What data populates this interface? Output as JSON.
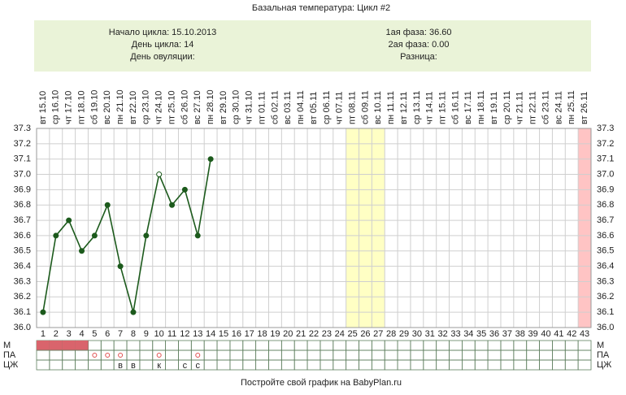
{
  "chart_data": {
    "type": "line",
    "title": "Базальная температура: Цикл #2",
    "info_left": [
      "Начало цикла: 15.10.2013",
      "День цикла: 14",
      "День овуляции:"
    ],
    "info_right": [
      "1ая фаза: 36.60",
      "2ая фаза: 0.00",
      "Разница:"
    ],
    "x": [
      1,
      2,
      3,
      4,
      5,
      6,
      7,
      8,
      9,
      10,
      11,
      12,
      13,
      14,
      15,
      16,
      17,
      18,
      19,
      20,
      21,
      22,
      23,
      24,
      25,
      26,
      27,
      28,
      29,
      30,
      31,
      32,
      33,
      34,
      35,
      36,
      37,
      38,
      39,
      40,
      41,
      42,
      43
    ],
    "x_dates": [
      "вт 15.10",
      "ср 16.10",
      "чт 17.10",
      "пт 18.10",
      "сб 19.10",
      "вс 20.10",
      "пн 21.10",
      "вт 22.10",
      "ср 23.10",
      "чт 24.10",
      "пт 25.10",
      "сб 26.10",
      "вс 27.10",
      "пн 28.10",
      "вт 29.10",
      "ср 30.10",
      "чт 31.10",
      "пт 01.11",
      "сб 02.11",
      "вс 03.11",
      "пн 04.11",
      "вт 05.11",
      "ср 06.11",
      "чт 07.11",
      "пт 08.11",
      "сб 09.11",
      "вс 10.11",
      "пн 11.11",
      "вт 12.11",
      "ср 13.11",
      "чт 14.11",
      "пт 15.11",
      "сб 16.11",
      "вс 17.11",
      "пн 18.11",
      "вт 19.11",
      "ср 20.11",
      "чт 21.11",
      "пт 22.11",
      "сб 23.11",
      "вс 24.11",
      "пн 25.11",
      "вт 26.11"
    ],
    "values": [
      36.1,
      36.6,
      36.7,
      36.5,
      36.6,
      36.8,
      36.4,
      36.1,
      36.6,
      37.0,
      36.8,
      36.9,
      36.6,
      37.1,
      null,
      null,
      null,
      null,
      null,
      null,
      null,
      null,
      null,
      null,
      null,
      null,
      null,
      null,
      null,
      null,
      null,
      null,
      null,
      null,
      null,
      null,
      null,
      null,
      null,
      null,
      null,
      null,
      null
    ],
    "color": "#1c5a1c",
    "open_points": [
      10
    ],
    "xlim": [
      0.5,
      43.5
    ],
    "ylim": [
      36.0,
      37.3
    ],
    "yticks": [
      {
        "value": 36.0,
        "label": "36.0"
      },
      36.1,
      36.2,
      36.3,
      36.4,
      36.5,
      36.6,
      36.7,
      36.8,
      36.9,
      {
        "value": 37.0,
        "label": "37.0"
      },
      37.1,
      37.2,
      37.3
    ],
    "grid": true,
    "highlights": [
      {
        "days": [
          25,
          27
        ],
        "color": "#ffffc4"
      },
      {
        "days": [
          43,
          43
        ],
        "color": "#ffc4c4"
      }
    ],
    "rows": [
      {
        "label": "М",
        "fill_days": [
          1,
          2,
          3,
          4
        ],
        "color": "#d9646c"
      },
      {
        "label": "ПА",
        "circle_days": [
          5,
          6,
          7,
          10,
          13
        ],
        "color": "#e05050"
      },
      {
        "label": "ЦЖ",
        "letters": [
          {
            "day": 7,
            "text": "в"
          },
          {
            "day": 8,
            "text": "в"
          },
          {
            "day": 10,
            "text": "к"
          },
          {
            "day": 12,
            "text": "с"
          },
          {
            "day": 13,
            "text": "с"
          }
        ]
      }
    ],
    "footer": "Постройте свой график на BabyPlan.ru"
  }
}
